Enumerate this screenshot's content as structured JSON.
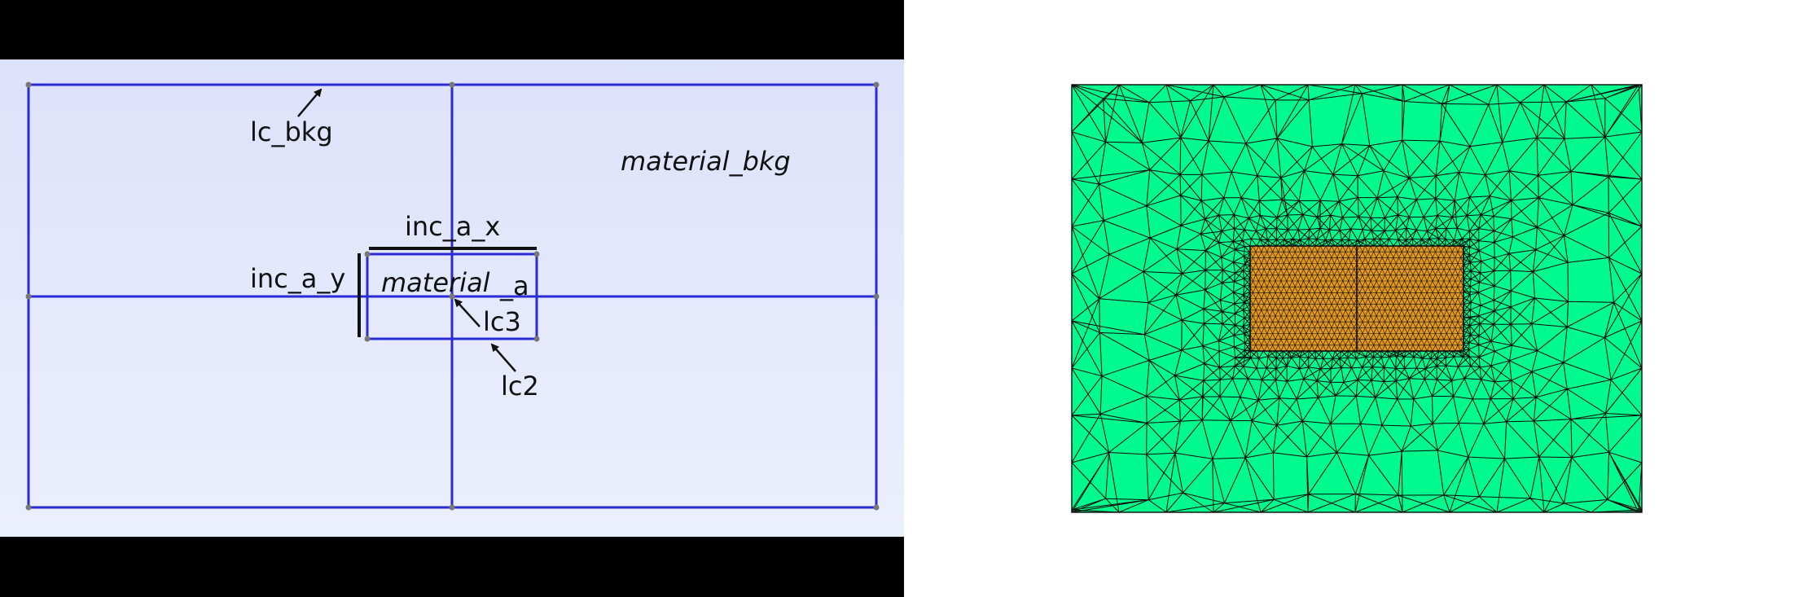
{
  "left_diagram": {
    "labels": {
      "lc_bkg": "lc_bkg",
      "material_bkg": "material_bkg",
      "inc_a_x": "inc_a_x",
      "inc_a_y": "inc_a_y",
      "material_a_main": "material",
      "material_a_sub": "_a",
      "lc3": "lc3",
      "lc2": "lc2"
    },
    "colors": {
      "letterbox": "#000000",
      "background": "#e3e7fb",
      "outline": "#2a2ad6",
      "dimension_bar": "#111111"
    }
  },
  "right_mesh": {
    "colors": {
      "background_region": "#00fa8e",
      "inclusion_region": "#e59a1c",
      "edges": "#0a0a0a"
    }
  }
}
